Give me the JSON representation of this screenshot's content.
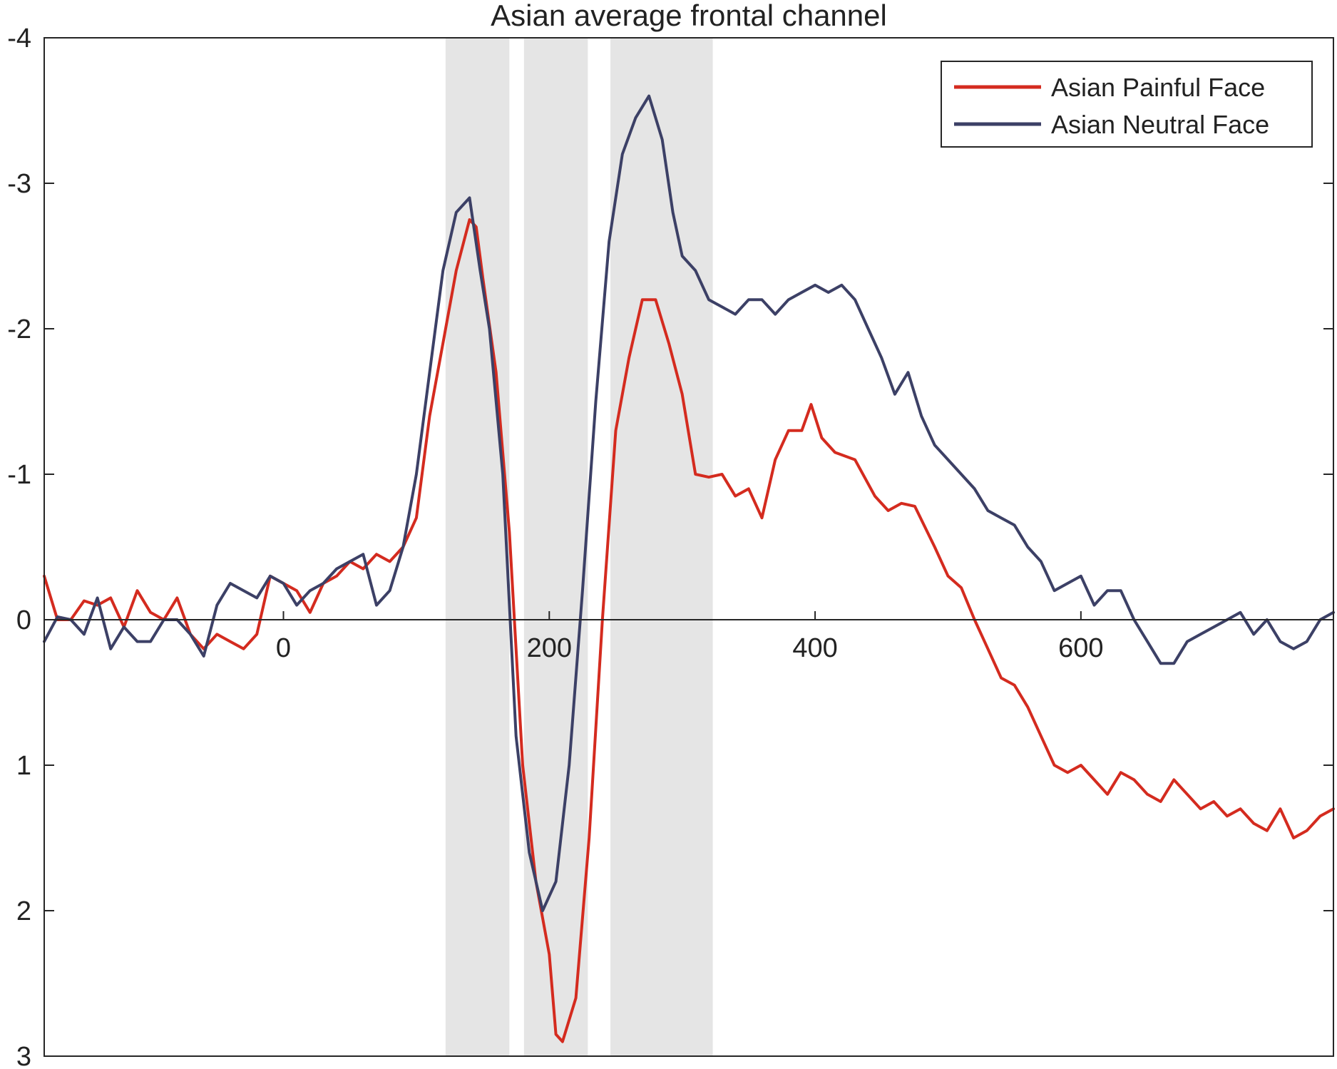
{
  "chart_data": {
    "type": "line",
    "title": "Asian average frontal channel",
    "xlabel": "",
    "ylabel": "",
    "xlim": [
      -180,
      790
    ],
    "ylim": [
      -4,
      3
    ],
    "y_reversed": true,
    "x_axis_at_y": 0,
    "x_ticks": [
      0,
      200,
      400,
      600
    ],
    "y_ticks": [
      -4,
      -3,
      -2,
      -1,
      0,
      1,
      2,
      3
    ],
    "grid": false,
    "legend_position": "top-right",
    "shaded_windows": [
      [
        122,
        170
      ],
      [
        181,
        229
      ],
      [
        246,
        323
      ]
    ],
    "series": [
      {
        "name": "Asian Painful Face",
        "color": "#d42b1f",
        "x": [
          -180,
          -170,
          -160,
          -150,
          -140,
          -130,
          -120,
          -110,
          -100,
          -90,
          -80,
          -70,
          -60,
          -50,
          -40,
          -30,
          -20,
          -10,
          0,
          10,
          20,
          30,
          40,
          50,
          60,
          70,
          80,
          90,
          100,
          110,
          120,
          130,
          140,
          145,
          150,
          160,
          170,
          180,
          190,
          200,
          205,
          210,
          220,
          230,
          240,
          250,
          260,
          270,
          280,
          290,
          300,
          310,
          320,
          330,
          340,
          350,
          360,
          370,
          380,
          390,
          397,
          405,
          415,
          430,
          445,
          455,
          465,
          475,
          490,
          500,
          510,
          520,
          530,
          540,
          550,
          560,
          570,
          580,
          590,
          600,
          610,
          620,
          630,
          640,
          650,
          660,
          670,
          680,
          690,
          700,
          710,
          720,
          730,
          740,
          750,
          760,
          770,
          780,
          790
        ],
        "y": [
          -0.3,
          0.0,
          0.0,
          -0.13,
          -0.1,
          -0.15,
          0.05,
          -0.2,
          -0.05,
          0.0,
          -0.15,
          0.1,
          0.2,
          0.1,
          0.15,
          0.2,
          0.1,
          -0.3,
          -0.25,
          -0.2,
          -0.05,
          -0.25,
          -0.3,
          -0.4,
          -0.35,
          -0.45,
          -0.4,
          -0.5,
          -0.7,
          -1.4,
          -1.9,
          -2.4,
          -2.75,
          -2.7,
          -2.35,
          -1.7,
          -0.6,
          1.0,
          1.8,
          2.3,
          2.85,
          2.9,
          2.6,
          1.5,
          0.0,
          -1.3,
          -1.8,
          -2.2,
          -2.2,
          -1.9,
          -1.55,
          -1.0,
          -0.98,
          -1.0,
          -0.85,
          -0.9,
          -0.7,
          -1.1,
          -1.3,
          -1.3,
          -1.48,
          -1.25,
          -1.15,
          -1.1,
          -0.85,
          -0.75,
          -0.8,
          -0.78,
          -0.5,
          -0.3,
          -0.22,
          0.0,
          0.2,
          0.4,
          0.45,
          0.6,
          0.8,
          1.0,
          1.05,
          1.0,
          1.1,
          1.2,
          1.05,
          1.1,
          1.2,
          1.25,
          1.1,
          1.2,
          1.3,
          1.25,
          1.35,
          1.3,
          1.4,
          1.45,
          1.3,
          1.5,
          1.45,
          1.35,
          1.3
        ]
      },
      {
        "name": "Asian Neutral Face",
        "color": "#3c4066",
        "x": [
          -180,
          -170,
          -160,
          -150,
          -140,
          -130,
          -120,
          -110,
          -100,
          -90,
          -80,
          -70,
          -60,
          -50,
          -40,
          -30,
          -20,
          -10,
          0,
          10,
          20,
          30,
          40,
          50,
          60,
          70,
          80,
          90,
          100,
          110,
          120,
          130,
          140,
          148,
          155,
          165,
          175,
          185,
          195,
          205,
          215,
          225,
          235,
          245,
          255,
          265,
          275,
          285,
          293,
          300,
          310,
          320,
          330,
          340,
          350,
          360,
          370,
          380,
          390,
          400,
          410,
          420,
          430,
          440,
          450,
          460,
          470,
          480,
          490,
          500,
          510,
          520,
          530,
          540,
          550,
          560,
          570,
          580,
          590,
          600,
          610,
          620,
          630,
          640,
          650,
          660,
          670,
          680,
          690,
          700,
          710,
          720,
          730,
          740,
          750,
          760,
          770,
          780,
          790
        ],
        "y": [
          0.15,
          -0.02,
          0.0,
          0.1,
          -0.15,
          0.2,
          0.05,
          0.15,
          0.15,
          0.0,
          0.0,
          0.1,
          0.25,
          -0.1,
          -0.25,
          -0.2,
          -0.15,
          -0.3,
          -0.25,
          -0.1,
          -0.2,
          -0.25,
          -0.35,
          -0.4,
          -0.45,
          -0.1,
          -0.2,
          -0.5,
          -1.0,
          -1.7,
          -2.4,
          -2.8,
          -2.9,
          -2.4,
          -2.0,
          -1.0,
          0.8,
          1.6,
          2.0,
          1.8,
          1.0,
          -0.2,
          -1.5,
          -2.6,
          -3.2,
          -3.45,
          -3.6,
          -3.3,
          -2.8,
          -2.5,
          -2.4,
          -2.2,
          -2.15,
          -2.1,
          -2.2,
          -2.2,
          -2.1,
          -2.2,
          -2.25,
          -2.3,
          -2.25,
          -2.3,
          -2.2,
          -2.0,
          -1.8,
          -1.55,
          -1.7,
          -1.4,
          -1.2,
          -1.1,
          -1.0,
          -0.9,
          -0.75,
          -0.7,
          -0.65,
          -0.5,
          -0.4,
          -0.2,
          -0.25,
          -0.3,
          -0.1,
          -0.2,
          -0.2,
          0.0,
          0.15,
          0.3,
          0.3,
          0.15,
          0.1,
          0.05,
          0.0,
          -0.05,
          0.1,
          0.0,
          0.15,
          0.2,
          0.15,
          0.0,
          -0.05
        ]
      }
    ]
  }
}
